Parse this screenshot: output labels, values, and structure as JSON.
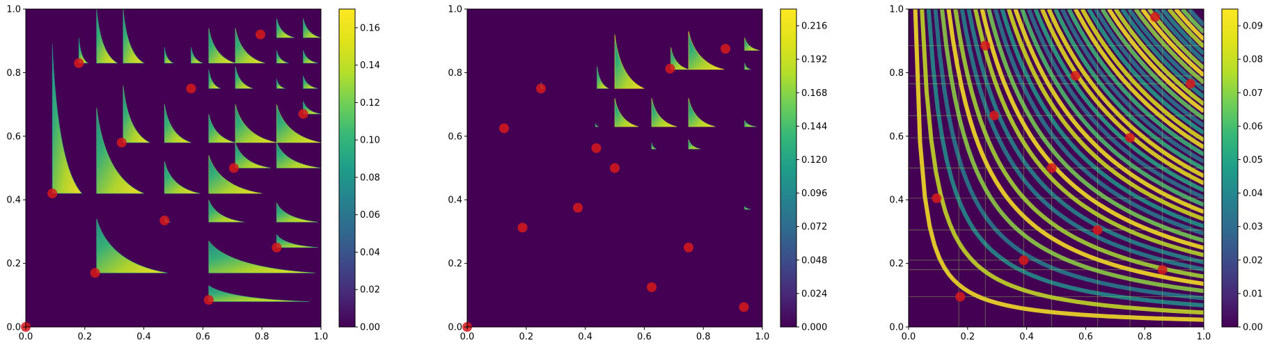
{
  "figure": {
    "panel_count": 3
  },
  "chart_data": [
    {
      "type": "heatmap",
      "title": "",
      "xlabel": "",
      "ylabel": "",
      "xlim": [
        0,
        1
      ],
      "ylim": [
        0,
        1
      ],
      "x_ticks": [
        "0.0",
        "0.2",
        "0.4",
        "0.6",
        "0.8",
        "1.0"
      ],
      "y_ticks": [
        "0.0",
        "0.2",
        "0.4",
        "0.6",
        "0.8",
        "1.0"
      ],
      "colorbar": {
        "min": 0.0,
        "max": 0.17,
        "ticks": [
          "0.00",
          "0.02",
          "0.04",
          "0.06",
          "0.08",
          "0.10",
          "0.12",
          "0.14",
          "0.16"
        ],
        "colormap": "viridis"
      },
      "background_color": "#440154",
      "marker_color": "#d7191c",
      "regions": [
        {
          "shape": "triangle",
          "x0": 0.09,
          "x1": 0.19,
          "y0": 0.42,
          "y1": 0.89,
          "v": 0.09
        },
        {
          "shape": "triangle",
          "x0": 0.18,
          "x1": 0.21,
          "y0": 0.83,
          "y1": 0.91,
          "v": 0.1
        },
        {
          "shape": "triangle",
          "x0": 0.24,
          "x1": 0.31,
          "y0": 0.83,
          "y1": 1.0,
          "v": 0.12
        },
        {
          "shape": "triangle",
          "x0": 0.33,
          "x1": 0.4,
          "y0": 0.83,
          "y1": 1.0,
          "v": 0.12
        },
        {
          "shape": "triangle",
          "x0": 0.47,
          "x1": 0.5,
          "y0": 0.83,
          "y1": 0.88,
          "v": 0.1
        },
        {
          "shape": "triangle",
          "x0": 0.56,
          "x1": 0.6,
          "y0": 0.83,
          "y1": 0.88,
          "v": 0.11
        },
        {
          "shape": "triangle",
          "x0": 0.62,
          "x1": 0.71,
          "y0": 0.83,
          "y1": 0.94,
          "v": 0.13
        },
        {
          "shape": "triangle",
          "x0": 0.71,
          "x1": 0.81,
          "y0": 0.83,
          "y1": 0.94,
          "v": 0.14
        },
        {
          "shape": "triangle",
          "x0": 0.85,
          "x1": 0.91,
          "y0": 0.91,
          "y1": 0.97,
          "v": 0.12
        },
        {
          "shape": "triangle",
          "x0": 0.94,
          "x1": 1.0,
          "y0": 0.91,
          "y1": 0.97,
          "v": 0.12
        },
        {
          "shape": "triangle",
          "x0": 0.85,
          "x1": 0.89,
          "y0": 0.83,
          "y1": 0.87,
          "v": 0.11
        },
        {
          "shape": "triangle",
          "x0": 0.94,
          "x1": 0.99,
          "y0": 0.83,
          "y1": 0.87,
          "v": 0.11
        },
        {
          "shape": "triangle",
          "x0": 0.62,
          "x1": 0.66,
          "y0": 0.75,
          "y1": 0.81,
          "v": 0.11
        },
        {
          "shape": "triangle",
          "x0": 0.71,
          "x1": 0.77,
          "y0": 0.75,
          "y1": 0.82,
          "v": 0.12
        },
        {
          "shape": "triangle",
          "x0": 0.85,
          "x1": 0.88,
          "y0": 0.75,
          "y1": 0.78,
          "v": 0.1
        },
        {
          "shape": "triangle",
          "x0": 0.94,
          "x1": 0.99,
          "y0": 0.75,
          "y1": 0.79,
          "v": 0.11
        },
        {
          "shape": "triangle",
          "x0": 0.24,
          "x1": 0.4,
          "y0": 0.42,
          "y1": 0.69,
          "v": 0.13
        },
        {
          "shape": "triangle",
          "x0": 0.33,
          "x1": 0.42,
          "y0": 0.58,
          "y1": 0.76,
          "v": 0.13
        },
        {
          "shape": "triangle",
          "x0": 0.47,
          "x1": 0.56,
          "y0": 0.58,
          "y1": 0.7,
          "v": 0.13
        },
        {
          "shape": "triangle",
          "x0": 0.62,
          "x1": 0.71,
          "y0": 0.58,
          "y1": 0.67,
          "v": 0.13
        },
        {
          "shape": "triangle",
          "x0": 0.71,
          "x1": 0.85,
          "y0": 0.58,
          "y1": 0.7,
          "v": 0.15
        },
        {
          "shape": "triangle",
          "x0": 0.85,
          "x1": 1.0,
          "y0": 0.58,
          "y1": 0.7,
          "v": 0.15
        },
        {
          "shape": "triangle",
          "x0": 0.94,
          "x1": 1.0,
          "y0": 0.67,
          "y1": 0.71,
          "v": 0.12
        },
        {
          "shape": "triangle",
          "x0": 0.71,
          "x1": 0.83,
          "y0": 0.5,
          "y1": 0.58,
          "v": 0.13
        },
        {
          "shape": "triangle",
          "x0": 0.85,
          "x1": 1.0,
          "y0": 0.5,
          "y1": 0.58,
          "v": 0.13
        },
        {
          "shape": "triangle",
          "x0": 0.47,
          "x1": 0.59,
          "y0": 0.42,
          "y1": 0.52,
          "v": 0.13
        },
        {
          "shape": "triangle",
          "x0": 0.62,
          "x1": 0.8,
          "y0": 0.42,
          "y1": 0.54,
          "v": 0.15
        },
        {
          "shape": "triangle",
          "x0": 0.62,
          "x1": 0.74,
          "y0": 0.33,
          "y1": 0.4,
          "v": 0.13
        },
        {
          "shape": "triangle",
          "x0": 0.85,
          "x1": 0.99,
          "y0": 0.33,
          "y1": 0.39,
          "v": 0.13
        },
        {
          "shape": "triangle",
          "x0": 0.47,
          "x1": 0.49,
          "y0": 0.33,
          "y1": 0.35,
          "v": 0.11
        },
        {
          "shape": "triangle",
          "x0": 0.24,
          "x1": 0.48,
          "y0": 0.17,
          "y1": 0.34,
          "v": 0.12
        },
        {
          "shape": "triangle",
          "x0": 0.62,
          "x1": 0.98,
          "y0": 0.17,
          "y1": 0.27,
          "v": 0.13
        },
        {
          "shape": "triangle",
          "x0": 0.85,
          "x1": 0.99,
          "y0": 0.25,
          "y1": 0.29,
          "v": 0.12
        },
        {
          "shape": "triangle",
          "x0": 0.62,
          "x1": 0.96,
          "y0": 0.08,
          "y1": 0.13,
          "v": 0.12
        }
      ],
      "points": [
        {
          "x": 0.0,
          "y": 0.0
        },
        {
          "x": 0.09,
          "y": 0.42
        },
        {
          "x": 0.18,
          "y": 0.83
        },
        {
          "x": 0.235,
          "y": 0.17
        },
        {
          "x": 0.325,
          "y": 0.58
        },
        {
          "x": 0.47,
          "y": 0.335
        },
        {
          "x": 0.56,
          "y": 0.75
        },
        {
          "x": 0.62,
          "y": 0.085
        },
        {
          "x": 0.705,
          "y": 0.5
        },
        {
          "x": 0.795,
          "y": 0.92
        },
        {
          "x": 0.85,
          "y": 0.25
        },
        {
          "x": 0.94,
          "y": 0.67
        }
      ]
    },
    {
      "type": "heatmap",
      "title": "",
      "xlabel": "",
      "ylabel": "",
      "xlim": [
        0,
        1
      ],
      "ylim": [
        0,
        1
      ],
      "x_ticks": [
        "0.0",
        "0.2",
        "0.4",
        "0.6",
        "0.8",
        "1.0"
      ],
      "y_ticks": [
        "0.0",
        "0.2",
        "0.4",
        "0.6",
        "0.8",
        "1.0"
      ],
      "colorbar": {
        "min": 0.0,
        "max": 0.228,
        "ticks": [
          "0.000",
          "0.024",
          "0.048",
          "0.072",
          "0.096",
          "0.120",
          "0.144",
          "0.168",
          "0.192",
          "0.216"
        ],
        "colormap": "viridis"
      },
      "background_color": "#440154",
      "marker_color": "#d7191c",
      "regions": [
        {
          "shape": "triangle",
          "x0": 0.44,
          "x1": 0.48,
          "y0": 0.75,
          "y1": 0.82,
          "v": 0.13
        },
        {
          "shape": "triangle",
          "x0": 0.5,
          "x1": 0.6,
          "y0": 0.75,
          "y1": 0.92,
          "v": 0.18
        },
        {
          "shape": "triangle",
          "x0": 0.69,
          "x1": 0.75,
          "y0": 0.81,
          "y1": 0.88,
          "v": 0.15
        },
        {
          "shape": "triangle",
          "x0": 0.75,
          "x1": 0.87,
          "y0": 0.81,
          "y1": 0.93,
          "v": 0.19
        },
        {
          "shape": "triangle",
          "x0": 0.94,
          "x1": 0.99,
          "y0": 0.87,
          "y1": 0.91,
          "v": 0.15
        },
        {
          "shape": "triangle",
          "x0": 0.94,
          "x1": 0.96,
          "y0": 0.81,
          "y1": 0.83,
          "v": 0.13
        },
        {
          "shape": "triangle",
          "x0": 0.5,
          "x1": 0.58,
          "y0": 0.63,
          "y1": 0.72,
          "v": 0.16
        },
        {
          "shape": "triangle",
          "x0": 0.625,
          "x1": 0.71,
          "y0": 0.63,
          "y1": 0.72,
          "v": 0.16
        },
        {
          "shape": "triangle",
          "x0": 0.75,
          "x1": 0.84,
          "y0": 0.63,
          "y1": 0.72,
          "v": 0.16
        },
        {
          "shape": "triangle",
          "x0": 0.94,
          "x1": 0.98,
          "y0": 0.63,
          "y1": 0.65,
          "v": 0.13
        },
        {
          "shape": "triangle",
          "x0": 0.625,
          "x1": 0.64,
          "y0": 0.56,
          "y1": 0.58,
          "v": 0.12
        },
        {
          "shape": "triangle",
          "x0": 0.75,
          "x1": 0.79,
          "y0": 0.56,
          "y1": 0.59,
          "v": 0.14
        },
        {
          "shape": "triangle",
          "x0": 0.94,
          "x1": 0.96,
          "y0": 0.37,
          "y1": 0.38,
          "v": 0.12
        },
        {
          "shape": "triangle",
          "x0": 0.25,
          "x1": 0.26,
          "y0": 0.75,
          "y1": 0.77,
          "v": 0.12
        },
        {
          "shape": "triangle",
          "x0": 0.435,
          "x1": 0.445,
          "y0": 0.63,
          "y1": 0.64,
          "v": 0.12
        }
      ],
      "points": [
        {
          "x": 0.0,
          "y": 0.0
        },
        {
          "x": 0.125,
          "y": 0.625
        },
        {
          "x": 0.1875,
          "y": 0.3125
        },
        {
          "x": 0.25,
          "y": 0.75
        },
        {
          "x": 0.375,
          "y": 0.375
        },
        {
          "x": 0.4375,
          "y": 0.5625
        },
        {
          "x": 0.5,
          "y": 0.5
        },
        {
          "x": 0.625,
          "y": 0.125
        },
        {
          "x": 0.6875,
          "y": 0.8125
        },
        {
          "x": 0.75,
          "y": 0.25
        },
        {
          "x": 0.875,
          "y": 0.875
        },
        {
          "x": 0.9375,
          "y": 0.0625
        }
      ]
    },
    {
      "type": "heatmap",
      "title": "",
      "xlabel": "",
      "ylabel": "",
      "xlim": [
        0,
        1
      ],
      "ylim": [
        0,
        1
      ],
      "x_ticks": [
        "0.0",
        "0.2",
        "0.4",
        "0.6",
        "0.8",
        "1.0"
      ],
      "y_ticks": [
        "0.0",
        "0.2",
        "0.4",
        "0.6",
        "0.8",
        "1.0"
      ],
      "colorbar": {
        "min": 0.0,
        "max": 0.095,
        "ticks": [
          "0.00",
          "0.01",
          "0.02",
          "0.03",
          "0.04",
          "0.05",
          "0.06",
          "0.07",
          "0.08",
          "0.09"
        ],
        "colormap": "viridis"
      },
      "background_color": "#440154",
      "marker_color": "#d7191c",
      "points": [
        {
          "x": 0.095,
          "y": 0.405
        },
        {
          "x": 0.175,
          "y": 0.095
        },
        {
          "x": 0.26,
          "y": 0.885
        },
        {
          "x": 0.29,
          "y": 0.665
        },
        {
          "x": 0.39,
          "y": 0.21
        },
        {
          "x": 0.485,
          "y": 0.5
        },
        {
          "x": 0.565,
          "y": 0.79
        },
        {
          "x": 0.64,
          "y": 0.305
        },
        {
          "x": 0.75,
          "y": 0.595
        },
        {
          "x": 0.835,
          "y": 0.975
        },
        {
          "x": 0.86,
          "y": 0.18
        },
        {
          "x": 0.955,
          "y": 0.765
        }
      ]
    }
  ]
}
